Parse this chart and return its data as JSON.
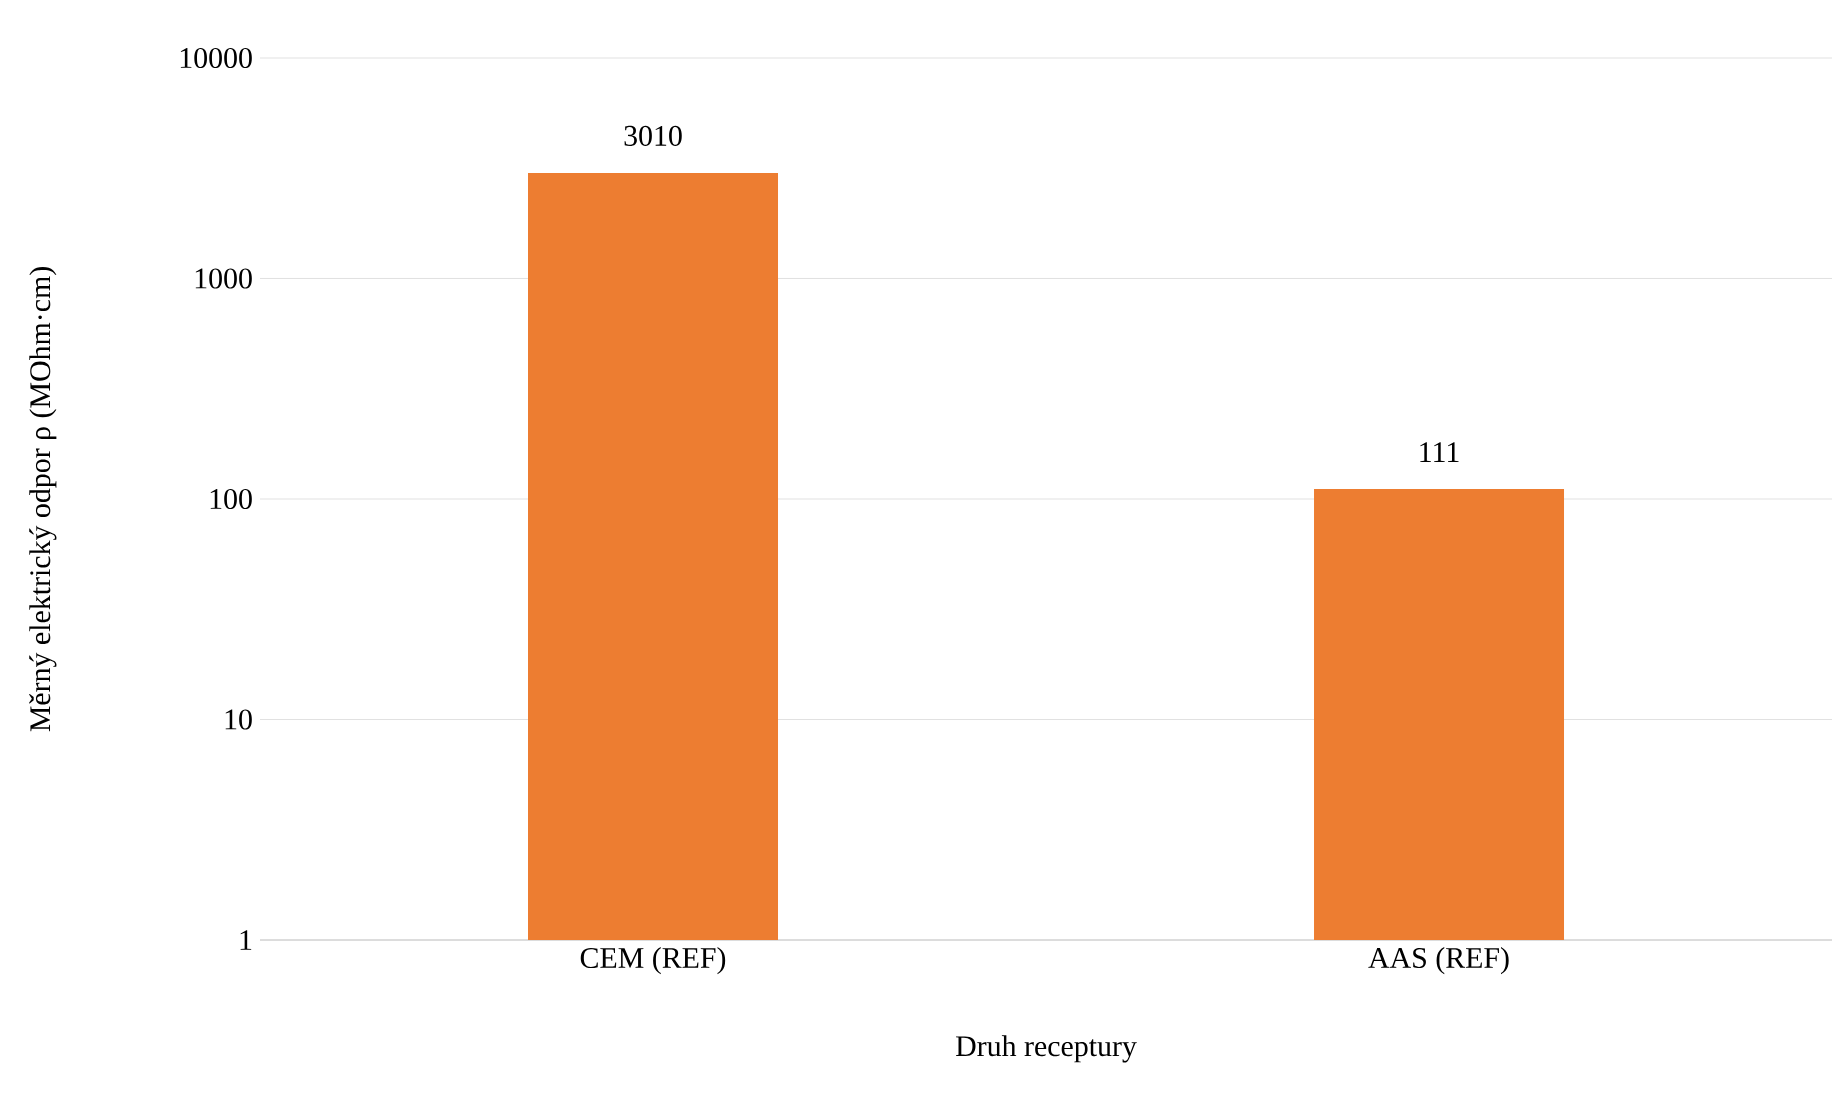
{
  "chart_data": {
    "type": "bar",
    "categories": [
      "CEM (REF)",
      "AAS (REF)"
    ],
    "values": [
      3010,
      111
    ],
    "color": "#ed7d31",
    "xlabel": "Druh receptury",
    "ylabel": "Měrný elektrický odpor ρ (MOhm·cm)",
    "log": true,
    "ylim": [
      1,
      10000
    ],
    "yticks": [
      1,
      10,
      100,
      1000,
      10000
    ],
    "grid": "y",
    "data_labels": true
  }
}
